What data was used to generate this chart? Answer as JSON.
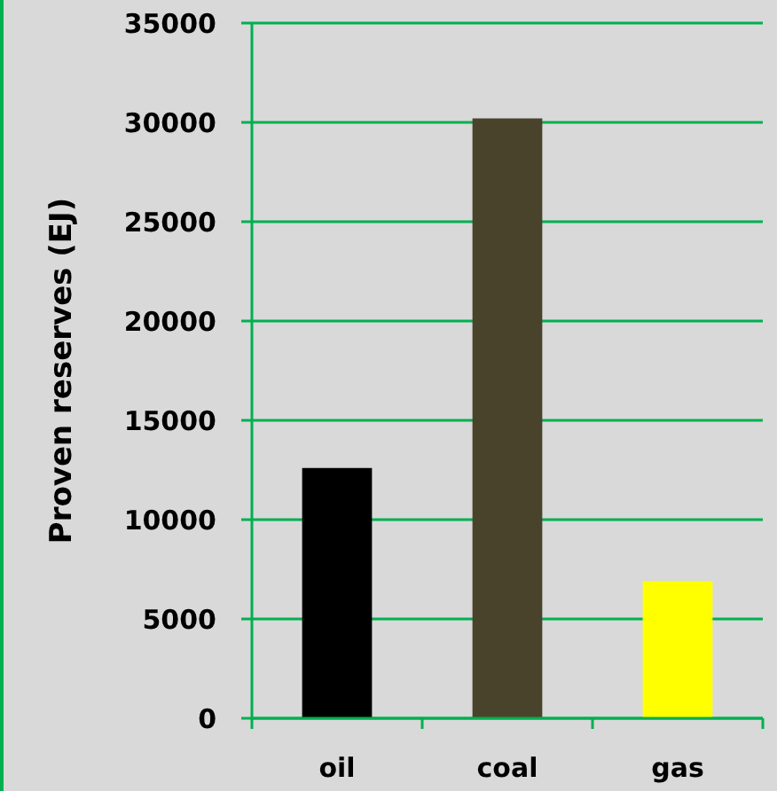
{
  "chart_data": {
    "type": "bar",
    "ylabel": "Proven reserves (EJ)",
    "categories": [
      "oil",
      "coal",
      "gas"
    ],
    "values": [
      12600,
      30200,
      6900
    ],
    "colors": [
      "#000000",
      "#4a432c",
      "#ffff00"
    ],
    "ylim": [
      0,
      35000
    ],
    "yticks": [
      0,
      5000,
      10000,
      15000,
      20000,
      25000,
      30000,
      35000
    ],
    "grid": "y"
  }
}
